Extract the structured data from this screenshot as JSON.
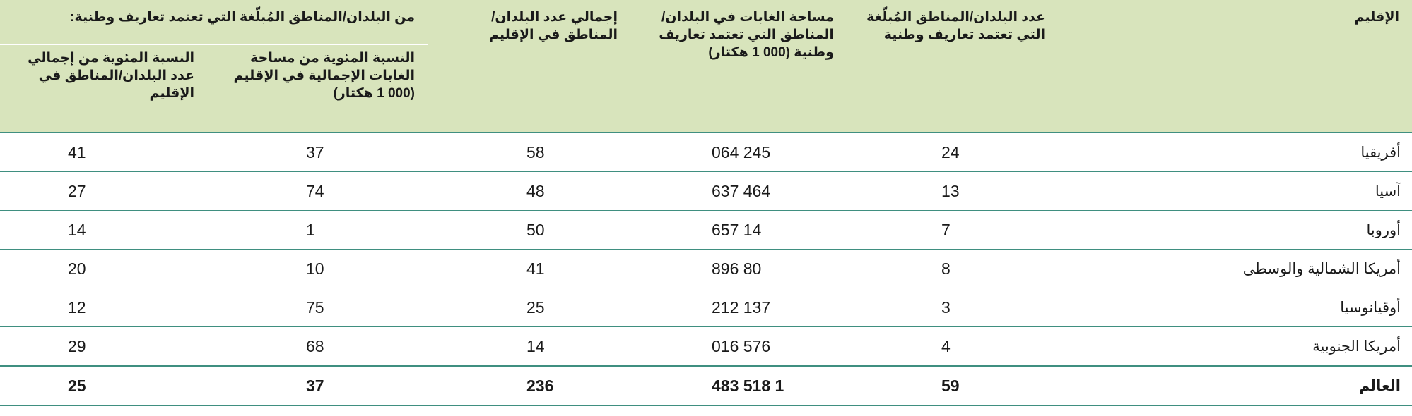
{
  "header": {
    "region": "الإقليم",
    "countries_count": "عدد البلدان/المناطق المُبلّغة التي تعتمد تعاريف وطنية",
    "forest_area": "مساحة الغابات في البلدان/ المناطق التي تعتمد تعاريف وطنية (000 1 هكتار)",
    "total_countries": "إجمالي عدد البلدان/المناطق في الإقليم",
    "group": "من البلدان/المناطق المُبلّغة التي تعتمد تعاريف وطنية:",
    "pct_forest": "النسبة المئوية من مساحة الغابات الإجمالية في الإقليم (000 1 هكتار)",
    "pct_countries": "النسبة المئوية من إجمالي عدد البلدان/المناطق في الإقليم"
  },
  "rows": [
    [
      "أفريقيا",
      "24",
      "245 064",
      "58",
      "37",
      "41"
    ],
    [
      "آسيا",
      "13",
      "464 637",
      "48",
      "74",
      "27"
    ],
    [
      "أوروبا",
      "7",
      "14 657",
      "50",
      "1",
      "14"
    ],
    [
      "أمريكا الشمالية والوسطى",
      "8",
      "80 896",
      "41",
      "10",
      "20"
    ],
    [
      "أوقيانوسيا",
      "3",
      "137 212",
      "25",
      "75",
      "12"
    ],
    [
      "أمريكا الجنوبية",
      "4",
      "576 016",
      "14",
      "68",
      "29"
    ]
  ],
  "total": [
    "العالم",
    "59",
    "1 518 483",
    "236",
    "37",
    "25"
  ]
}
